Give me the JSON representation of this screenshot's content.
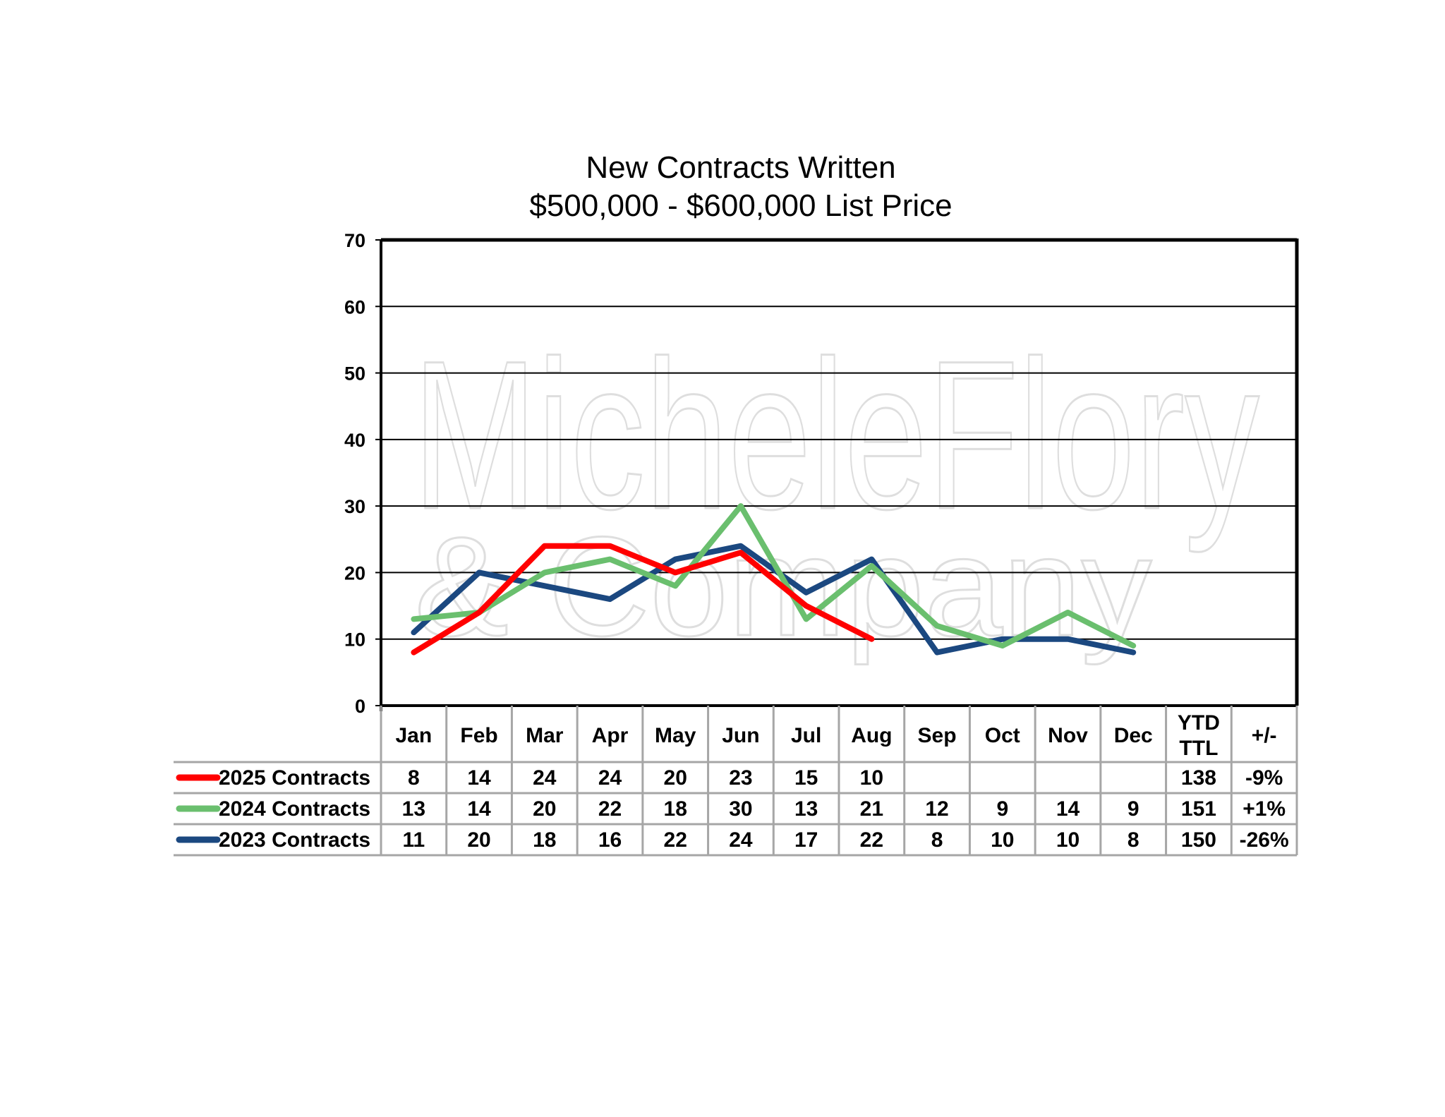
{
  "chart_data": {
    "type": "line",
    "title": "New Contracts Written",
    "subtitle": "$500,000 - $600,000 List Price",
    "ylim": [
      0,
      70
    ],
    "yticks": [
      0,
      10,
      20,
      30,
      40,
      50,
      60,
      70
    ],
    "grid": true,
    "categories": [
      "Jan",
      "Feb",
      "Mar",
      "Apr",
      "May",
      "Jun",
      "Jul",
      "Aug",
      "Sep",
      "Oct",
      "Nov",
      "Dec"
    ],
    "extra_headers": [
      [
        "YTD",
        "TTL"
      ],
      [
        "+/-"
      ]
    ],
    "series": [
      {
        "name": "2025 Contracts",
        "color": "#ff0000",
        "values": [
          8,
          14,
          24,
          24,
          20,
          23,
          15,
          10,
          null,
          null,
          null,
          null
        ],
        "ytd_ttl": "138",
        "change": "-9%"
      },
      {
        "name": "2024 Contracts",
        "color": "#6abf6e",
        "values": [
          13,
          14,
          20,
          22,
          18,
          30,
          13,
          21,
          12,
          9,
          14,
          9
        ],
        "ytd_ttl": "151",
        "change": "+1%"
      },
      {
        "name": "2023 Contracts",
        "color": "#1b4880",
        "values": [
          11,
          20,
          18,
          16,
          22,
          24,
          17,
          22,
          8,
          10,
          10,
          8
        ],
        "ytd_ttl": "150",
        "change": "-26%"
      }
    ],
    "watermark": [
      "MicheleFlory",
      "& Company"
    ]
  }
}
